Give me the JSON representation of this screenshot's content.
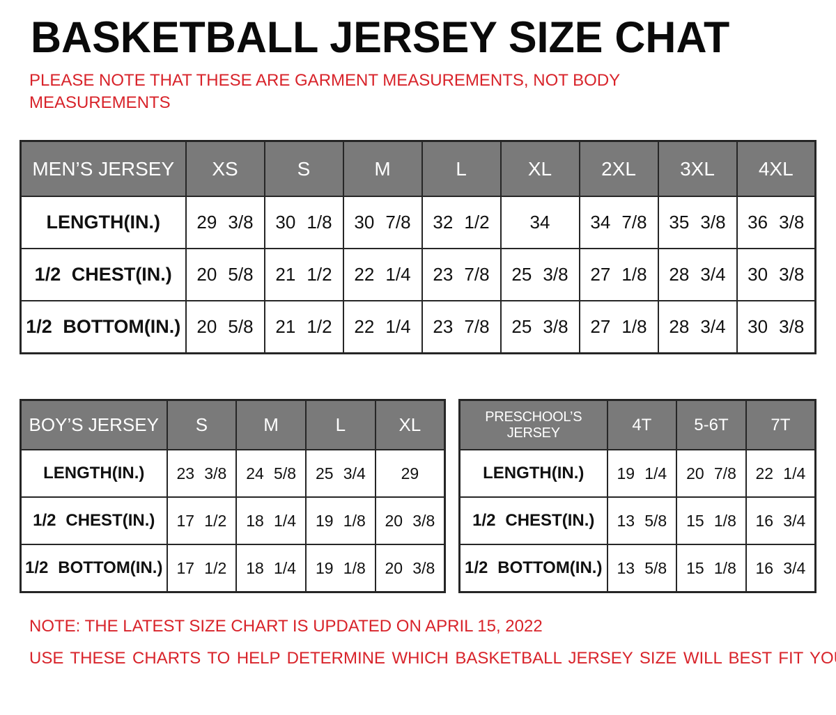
{
  "page": {
    "title": "BASKETBALL JERSEY SIZE CHAT",
    "subtitle_line1": "PLEASE NOTE THAT THESE ARE GARMENT MEASUREMENTS, NOT BODY",
    "subtitle_line2": "MEASUREMENTS",
    "note1": "NOTE: THE LATEST SIZE CHART IS UPDATED ON APRIL 15, 2022",
    "note2": "USE THESE CHARTS TO HELP DETERMINE WHICH BASKETBALL JERSEY SIZE WILL BEST FIT YOU."
  },
  "colors": {
    "header_bg": "#7a7a7a",
    "header_text": "#ffffff",
    "accent_red": "#d8232a",
    "border_col": "#262626"
  },
  "tables": {
    "mens": {
      "name": "MEN’S JERSEY",
      "sizes": [
        "XS",
        "S",
        "M",
        "L",
        "XL",
        "2XL",
        "3XL",
        "4XL"
      ],
      "rows": [
        {
          "label": "LENGTH(IN.)",
          "values": [
            "29 3/8",
            "30 1/8",
            "30 7/8",
            "32 1/2",
            "34",
            "34 7/8",
            "35 3/8",
            "36 3/8"
          ]
        },
        {
          "label": "1/2 CHEST(IN.)",
          "values": [
            "20 5/8",
            "21 1/2",
            "22 1/4",
            "23 7/8",
            "25 3/8",
            "27 1/8",
            "28 3/4",
            "30 3/8"
          ]
        },
        {
          "label": "1/2 BOTTOM(IN.)",
          "values": [
            "20 5/8",
            "21 1/2",
            "22 1/4",
            "23 7/8",
            "25 3/8",
            "27 1/8",
            "28 3/4",
            "30 3/8"
          ]
        }
      ]
    },
    "boys": {
      "name": "BOY’S JERSEY",
      "sizes": [
        "S",
        "M",
        "L",
        "XL"
      ],
      "rows": [
        {
          "label": "LENGTH(IN.)",
          "values": [
            "23 3/8",
            "24 5/8",
            "25 3/4",
            "29"
          ]
        },
        {
          "label": "1/2 CHEST(IN.)",
          "values": [
            "17 1/2",
            "18 1/4",
            "19 1/8",
            "20 3/8"
          ]
        },
        {
          "label": "1/2 BOTTOM(IN.)",
          "values": [
            "17 1/2",
            "18 1/4",
            "19 1/8",
            "20 3/8"
          ]
        }
      ]
    },
    "preschool": {
      "name": "PRESCHOOL’S JERSEY",
      "sizes": [
        "4T",
        "5-6T",
        "7T"
      ],
      "rows": [
        {
          "label": "LENGTH(IN.)",
          "values": [
            "19 1/4",
            "20 7/8",
            "22 1/4"
          ]
        },
        {
          "label": "1/2 CHEST(IN.)",
          "values": [
            "13 5/8",
            "15 1/8",
            "16 3/4"
          ]
        },
        {
          "label": "1/2 BOTTOM(IN.)",
          "values": [
            "13 5/8",
            "15 1/8",
            "16 3/4"
          ]
        }
      ]
    }
  }
}
